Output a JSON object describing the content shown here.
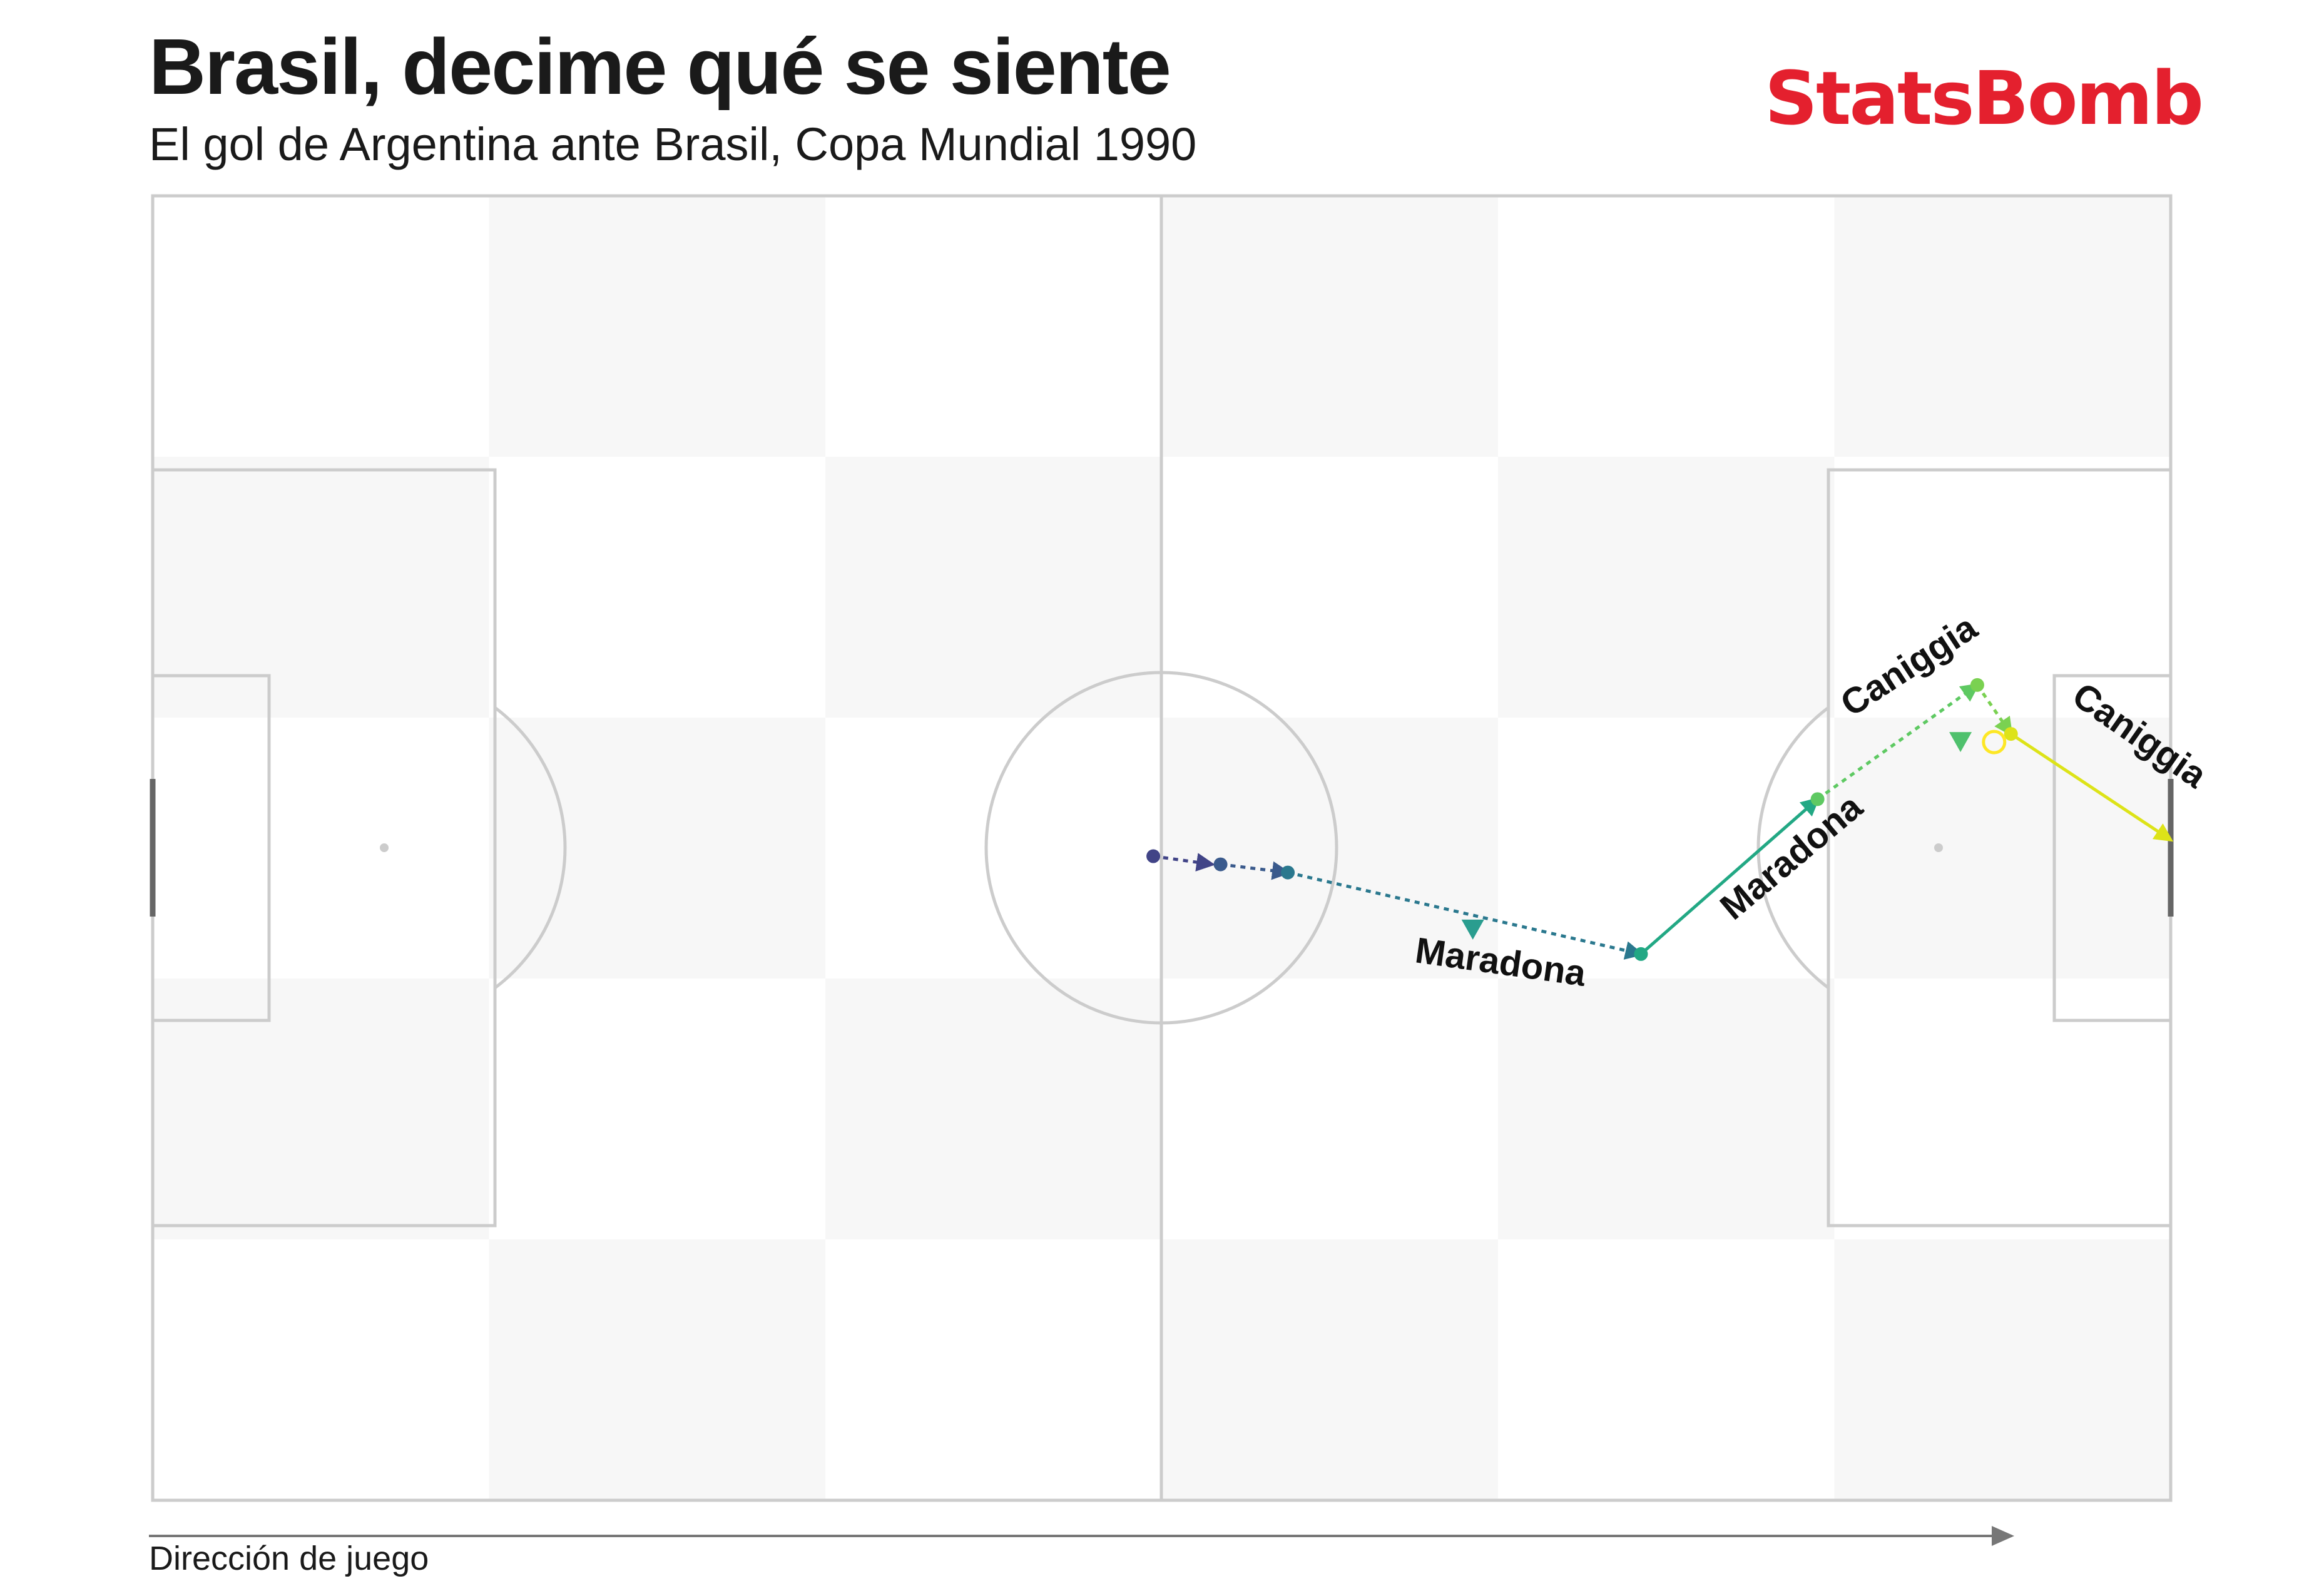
{
  "header": {
    "title": "Brasil, decime qué se siente",
    "subtitle": "El gol de Argentina ante Brasil, Copa Mundial 1990"
  },
  "logo": {
    "text": "StatsBomb",
    "color": "#e4202e"
  },
  "footer": {
    "direction_label": "Dirección de juego"
  },
  "colors": {
    "pitch_line": "#cccccc",
    "stripe": "#f7f7f7",
    "goal": "#666666",
    "arrow": "#777777"
  },
  "chart_data": {
    "type": "scatter",
    "pitch": {
      "length": 120,
      "width": 80,
      "units": "StatsBomb yards"
    },
    "events": [
      {
        "type": "carry",
        "x": 59.5,
        "y": 40.5,
        "end_x": 63.0,
        "end_y": 41.0,
        "color": "#414487"
      },
      {
        "type": "carry",
        "x": 63.5,
        "y": 41.0,
        "end_x": 67.5,
        "end_y": 41.5,
        "color": "#3a5a8c"
      },
      {
        "type": "carry",
        "x": 67.5,
        "y": 41.5,
        "end_x": 88.5,
        "end_y": 46.5,
        "color": "#2a788e",
        "player": "Maradona"
      },
      {
        "type": "pass",
        "x": 88.5,
        "y": 46.5,
        "end_x": 99.0,
        "end_y": 37.0,
        "color": "#22a884",
        "player": "Maradona"
      },
      {
        "type": "carry",
        "x": 99.0,
        "y": 37.0,
        "end_x": 108.5,
        "end_y": 30.0,
        "color": "#5ec962",
        "player": "Caniggia"
      },
      {
        "type": "carry",
        "x": 108.5,
        "y": 30.0,
        "end_x": 110.5,
        "end_y": 33.0,
        "color": "#7ad151"
      },
      {
        "type": "shot",
        "x": 110.5,
        "y": 33.0,
        "end_x": 120.0,
        "end_y": 39.5,
        "color": "#dde318",
        "player": "Caniggia"
      }
    ],
    "markers": [
      {
        "kind": "pressure",
        "x": 78.5,
        "y": 45.0,
        "color": "#2a9d8f"
      },
      {
        "kind": "pressure",
        "x": 107.5,
        "y": 33.5,
        "color": "#4fc16d"
      },
      {
        "kind": "ball_receipt",
        "x": 109.5,
        "y": 33.5,
        "color": "#fde725"
      }
    ],
    "labels": [
      {
        "text": "Maradona",
        "x": 75.0,
        "y": 47.0,
        "rotation": 8
      },
      {
        "text": "Maradona",
        "x": 94.0,
        "y": 44.5,
        "rotation": -40
      },
      {
        "text": "Caniggia",
        "x": 101.0,
        "y": 32.0,
        "rotation": -33
      },
      {
        "text": "Caniggia",
        "x": 114.0,
        "y": 31.0,
        "rotation": 35
      }
    ],
    "legend": "none",
    "grid": false
  }
}
